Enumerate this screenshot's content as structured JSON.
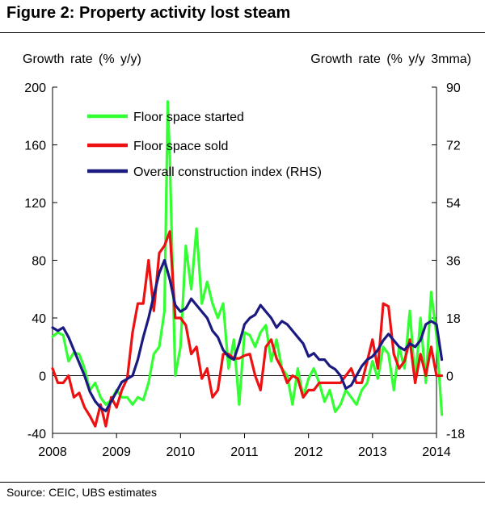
{
  "figure_title": "Figure 2: Property activity lost steam",
  "source": "Source:  CEIC, UBS estimates",
  "colors": {
    "floor_space_started": "#33ff33",
    "floor_space_sold": "#ee1111",
    "construction_index": "#1a1a80"
  },
  "chart_data": {
    "type": "line",
    "title": "Figure 2: Property activity lost steam",
    "ylabel_left": "Growth rate (% y/y)",
    "ylabel_right": "Growth rate (% y/y 3mma)",
    "ylim_left": [
      -40,
      200
    ],
    "ylim_right": [
      -18,
      90
    ],
    "yticks_left": [
      "-40",
      "0",
      "40",
      "80",
      "120",
      "160",
      "200"
    ],
    "yticks_right": [
      "-18",
      "0",
      "18",
      "36",
      "54",
      "72",
      "90"
    ],
    "xlim": [
      2008,
      2014
    ],
    "xticks": [
      "2008",
      "2009",
      "2010",
      "2011",
      "2012",
      "2013",
      "2014"
    ],
    "legend_position": "top-left",
    "grid": false,
    "series": [
      {
        "name": "Floor space started",
        "axis": "left",
        "color": "#33ff33",
        "x": [
          2008.0,
          2008.083,
          2008.167,
          2008.25,
          2008.333,
          2008.417,
          2008.5,
          2008.583,
          2008.667,
          2008.75,
          2008.833,
          2008.917,
          2009.0,
          2009.083,
          2009.167,
          2009.25,
          2009.333,
          2009.417,
          2009.5,
          2009.583,
          2009.667,
          2009.75,
          2009.8,
          2009.833,
          2009.917,
          2010.0,
          2010.083,
          2010.167,
          2010.25,
          2010.333,
          2010.417,
          2010.5,
          2010.583,
          2010.667,
          2010.75,
          2010.833,
          2010.917,
          2011.0,
          2011.083,
          2011.167,
          2011.25,
          2011.333,
          2011.417,
          2011.5,
          2011.583,
          2011.667,
          2011.75,
          2011.833,
          2011.917,
          2012.0,
          2012.083,
          2012.167,
          2012.25,
          2012.333,
          2012.417,
          2012.5,
          2012.583,
          2012.667,
          2012.75,
          2012.833,
          2012.917,
          2013.0,
          2013.083,
          2013.167,
          2013.25,
          2013.333,
          2013.417,
          2013.5,
          2013.583,
          2013.667,
          2013.75,
          2013.833,
          2013.917,
          2014.0,
          2014.083
        ],
        "y": [
          27,
          30,
          28,
          10,
          16,
          15,
          5,
          -10,
          -5,
          -15,
          -20,
          -17,
          -10,
          -15,
          -15,
          -20,
          -15,
          -17,
          -5,
          15,
          20,
          45,
          190,
          150,
          0,
          20,
          90,
          60,
          102,
          50,
          65,
          50,
          40,
          50,
          5,
          25,
          -20,
          30,
          28,
          20,
          30,
          35,
          10,
          25,
          5,
          0,
          -20,
          5,
          -15,
          -2,
          5,
          -5,
          -18,
          -10,
          -25,
          -20,
          -10,
          -15,
          -20,
          -10,
          -5,
          10,
          -2,
          20,
          15,
          -10,
          20,
          5,
          45,
          -5,
          40,
          -5,
          58,
          28,
          -27
        ]
      },
      {
        "name": "Floor space sold",
        "axis": "left",
        "color": "#ee1111",
        "x": [
          2008.0,
          2008.083,
          2008.167,
          2008.25,
          2008.333,
          2008.417,
          2008.5,
          2008.583,
          2008.667,
          2008.75,
          2008.833,
          2008.917,
          2009.0,
          2009.083,
          2009.167,
          2009.25,
          2009.333,
          2009.417,
          2009.5,
          2009.583,
          2009.667,
          2009.75,
          2009.833,
          2009.917,
          2010.0,
          2010.083,
          2010.167,
          2010.25,
          2010.333,
          2010.417,
          2010.5,
          2010.583,
          2010.667,
          2010.75,
          2010.833,
          2010.917,
          2011.0,
          2011.083,
          2011.167,
          2011.25,
          2011.333,
          2011.417,
          2011.5,
          2011.583,
          2011.667,
          2011.75,
          2011.833,
          2011.917,
          2012.0,
          2012.083,
          2012.167,
          2012.25,
          2012.333,
          2012.417,
          2012.5,
          2012.583,
          2012.667,
          2012.75,
          2012.833,
          2012.917,
          2013.0,
          2013.083,
          2013.167,
          2013.25,
          2013.333,
          2013.417,
          2013.5,
          2013.583,
          2013.667,
          2013.75,
          2013.833,
          2013.917,
          2014.0,
          2014.083
        ],
        "y": [
          5,
          -5,
          -5,
          0,
          -15,
          -12,
          -22,
          -28,
          -35,
          -20,
          -35,
          -15,
          -22,
          -10,
          -2,
          30,
          50,
          50,
          80,
          45,
          85,
          90,
          100,
          40,
          40,
          35,
          15,
          20,
          -2,
          5,
          -15,
          -10,
          15,
          15,
          12,
          12,
          14,
          15,
          0,
          -10,
          20,
          25,
          12,
          5,
          -5,
          0,
          -2,
          -15,
          -10,
          -10,
          -5,
          -5,
          -5,
          -5,
          -5,
          0,
          5,
          -5,
          -5,
          10,
          25,
          5,
          50,
          48,
          15,
          5,
          10,
          25,
          -5,
          15,
          0,
          20,
          0,
          0
        ]
      },
      {
        "name": "Overall construction index (RHS)",
        "axis": "right",
        "color": "#1a1a80",
        "x": [
          2008.0,
          2008.083,
          2008.167,
          2008.25,
          2008.333,
          2008.417,
          2008.5,
          2008.583,
          2008.667,
          2008.75,
          2008.833,
          2008.917,
          2009.0,
          2009.083,
          2009.167,
          2009.25,
          2009.333,
          2009.417,
          2009.5,
          2009.583,
          2009.667,
          2009.75,
          2009.833,
          2009.917,
          2010.0,
          2010.083,
          2010.167,
          2010.25,
          2010.333,
          2010.417,
          2010.5,
          2010.583,
          2010.667,
          2010.75,
          2010.833,
          2010.917,
          2011.0,
          2011.083,
          2011.167,
          2011.25,
          2011.333,
          2011.417,
          2011.5,
          2011.583,
          2011.667,
          2011.75,
          2011.833,
          2011.917,
          2012.0,
          2012.083,
          2012.167,
          2012.25,
          2012.333,
          2012.417,
          2012.5,
          2012.583,
          2012.667,
          2012.75,
          2012.833,
          2012.917,
          2013.0,
          2013.083,
          2013.167,
          2013.25,
          2013.333,
          2013.417,
          2013.5,
          2013.583,
          2013.667,
          2013.75,
          2013.833,
          2013.917,
          2014.0,
          2014.083
        ],
        "y": [
          15,
          14,
          15,
          12,
          8,
          4,
          0,
          -5,
          -8,
          -10,
          -11,
          -8,
          -5,
          -2,
          -1,
          0,
          5,
          12,
          18,
          25,
          32,
          36,
          30,
          22,
          20,
          21,
          24,
          22,
          20,
          18,
          14,
          12,
          8,
          6,
          5,
          10,
          16,
          18,
          19,
          22,
          20,
          18,
          15,
          17,
          16,
          14,
          12,
          10,
          6,
          7,
          5,
          5,
          3,
          2,
          0,
          -4,
          -3,
          0,
          3,
          5,
          6,
          8,
          11,
          13,
          11,
          9,
          8,
          10,
          9,
          11,
          16,
          17,
          16,
          5
        ]
      }
    ]
  }
}
